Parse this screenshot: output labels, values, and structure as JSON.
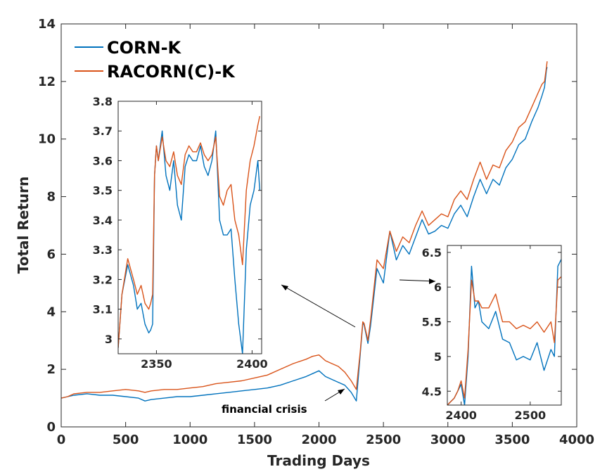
{
  "chart_data": {
    "type": "line",
    "xlabel": "Trading Days",
    "ylabel": "Total Return",
    "xlim": [
      0,
      4000
    ],
    "ylim": [
      0,
      14
    ],
    "xticks": [
      0,
      500,
      1000,
      1500,
      2000,
      2500,
      3000,
      3500,
      4000
    ],
    "yticks": [
      0,
      2,
      4,
      6,
      8,
      10,
      12,
      14
    ],
    "legend_position": "top-left",
    "colors": {
      "corn": "#0072BD",
      "racorn": "#D95319"
    },
    "series": [
      {
        "name": "CORN-K",
        "x": [
          0,
          50,
          100,
          200,
          300,
          400,
          500,
          600,
          650,
          700,
          800,
          900,
          1000,
          1100,
          1200,
          1300,
          1400,
          1500,
          1600,
          1700,
          1800,
          1900,
          1950,
          2000,
          2050,
          2100,
          2150,
          2200,
          2250,
          2290,
          2320,
          2340,
          2350,
          2380,
          2400,
          2450,
          2500,
          2550,
          2600,
          2650,
          2700,
          2750,
          2800,
          2850,
          2900,
          2950,
          3000,
          3050,
          3100,
          3150,
          3200,
          3250,
          3300,
          3350,
          3400,
          3450,
          3500,
          3550,
          3600,
          3650,
          3700,
          3730,
          3750,
          3765,
          3770
        ],
        "y": [
          1.0,
          1.05,
          1.1,
          1.15,
          1.1,
          1.1,
          1.05,
          1.0,
          0.9,
          0.95,
          1.0,
          1.05,
          1.05,
          1.1,
          1.15,
          1.2,
          1.25,
          1.3,
          1.35,
          1.45,
          1.6,
          1.75,
          1.85,
          1.95,
          1.75,
          1.65,
          1.55,
          1.45,
          1.2,
          0.9,
          2.5,
          3.6,
          3.55,
          2.9,
          3.5,
          5.5,
          5.0,
          6.8,
          5.8,
          6.3,
          6.0,
          6.6,
          7.2,
          6.7,
          6.8,
          7.0,
          6.9,
          7.4,
          7.7,
          7.3,
          8.0,
          8.6,
          8.1,
          8.6,
          8.4,
          9.0,
          9.3,
          9.8,
          10.0,
          10.6,
          11.1,
          11.5,
          11.8,
          12.4,
          12.5
        ]
      },
      {
        "name": "RACORN(C)-K",
        "x": [
          0,
          50,
          100,
          200,
          300,
          400,
          500,
          600,
          650,
          700,
          800,
          900,
          1000,
          1100,
          1200,
          1300,
          1400,
          1500,
          1600,
          1700,
          1800,
          1900,
          1950,
          2000,
          2050,
          2100,
          2150,
          2200,
          2250,
          2290,
          2320,
          2340,
          2350,
          2380,
          2400,
          2450,
          2500,
          2550,
          2600,
          2650,
          2700,
          2750,
          2800,
          2850,
          2900,
          2950,
          3000,
          3050,
          3100,
          3150,
          3200,
          3250,
          3300,
          3350,
          3400,
          3450,
          3500,
          3550,
          3600,
          3650,
          3700,
          3730,
          3750,
          3765,
          3770
        ],
        "y": [
          1.0,
          1.05,
          1.15,
          1.2,
          1.2,
          1.25,
          1.3,
          1.25,
          1.2,
          1.25,
          1.3,
          1.3,
          1.35,
          1.4,
          1.5,
          1.55,
          1.6,
          1.7,
          1.8,
          2.0,
          2.2,
          2.35,
          2.45,
          2.5,
          2.3,
          2.2,
          2.1,
          1.9,
          1.6,
          1.3,
          2.6,
          3.65,
          3.6,
          3.0,
          3.7,
          5.8,
          5.5,
          6.8,
          6.1,
          6.6,
          6.4,
          7.0,
          7.5,
          7.0,
          7.2,
          7.4,
          7.3,
          7.9,
          8.2,
          7.9,
          8.6,
          9.2,
          8.6,
          9.1,
          9.0,
          9.6,
          9.9,
          10.4,
          10.6,
          11.1,
          11.6,
          11.9,
          12.0,
          12.5,
          12.7
        ]
      }
    ],
    "insets": [
      {
        "xlim": [
          2330,
          2405
        ],
        "ylim": [
          2.95,
          3.8
        ],
        "xticks": [
          2350,
          2400
        ],
        "yticks": [
          3,
          3.1,
          3.2,
          3.3,
          3.4,
          3.5,
          3.6,
          3.7,
          3.8
        ],
        "series": [
          {
            "name": "CORN-K",
            "x": [
              2330,
              2332,
              2335,
              2338,
              2340,
              2342,
              2344,
              2346,
              2347,
              2348,
              2349,
              2350,
              2351,
              2353,
              2355,
              2357,
              2359,
              2361,
              2363,
              2365,
              2367,
              2369,
              2371,
              2373,
              2375,
              2377,
              2379,
              2381,
              2383,
              2385,
              2387,
              2389,
              2391,
              2393,
              2395,
              2397,
              2399,
              2401,
              2403,
              2404
            ],
            "y": [
              2.97,
              3.15,
              3.25,
              3.18,
              3.1,
              3.12,
              3.05,
              3.02,
              3.03,
              3.05,
              3.55,
              3.65,
              3.6,
              3.7,
              3.55,
              3.5,
              3.6,
              3.45,
              3.4,
              3.58,
              3.62,
              3.6,
              3.6,
              3.65,
              3.58,
              3.55,
              3.6,
              3.7,
              3.4,
              3.35,
              3.35,
              3.37,
              3.2,
              3.05,
              2.95,
              3.3,
              3.45,
              3.5,
              3.6,
              3.5
            ]
          },
          {
            "name": "RACORN(C)-K",
            "x": [
              2330,
              2332,
              2335,
              2338,
              2340,
              2342,
              2344,
              2346,
              2347,
              2348,
              2349,
              2350,
              2351,
              2353,
              2355,
              2357,
              2359,
              2361,
              2363,
              2365,
              2367,
              2369,
              2371,
              2373,
              2375,
              2377,
              2379,
              2381,
              2383,
              2385,
              2387,
              2389,
              2391,
              2393,
              2395,
              2397,
              2399,
              2401,
              2403,
              2404
            ],
            "y": [
              2.97,
              3.15,
              3.27,
              3.2,
              3.15,
              3.18,
              3.12,
              3.1,
              3.12,
              3.15,
              3.55,
              3.65,
              3.6,
              3.68,
              3.6,
              3.58,
              3.63,
              3.55,
              3.52,
              3.62,
              3.65,
              3.63,
              3.63,
              3.66,
              3.62,
              3.6,
              3.62,
              3.68,
              3.48,
              3.45,
              3.5,
              3.52,
              3.4,
              3.35,
              3.25,
              3.5,
              3.6,
              3.65,
              3.72,
              3.75
            ]
          }
        ]
      },
      {
        "xlim": [
          2380,
          2545
        ],
        "ylim": [
          4.3,
          6.6
        ],
        "xticks": [
          2400,
          2500
        ],
        "yticks": [
          4.5,
          5,
          5.5,
          6,
          6.5
        ],
        "series": [
          {
            "name": "CORN-K",
            "x": [
              2380,
              2390,
              2395,
              2400,
              2405,
              2410,
              2415,
              2420,
              2425,
              2430,
              2440,
              2450,
              2460,
              2470,
              2480,
              2490,
              2500,
              2510,
              2520,
              2530,
              2535,
              2540,
              2545
            ],
            "y": [
              4.3,
              4.4,
              4.5,
              4.6,
              4.3,
              5.0,
              6.3,
              5.7,
              5.8,
              5.5,
              5.4,
              5.65,
              5.25,
              5.2,
              4.95,
              5.0,
              4.95,
              5.2,
              4.8,
              5.1,
              5.0,
              6.3,
              6.4
            ]
          },
          {
            "name": "RACORN(C)-K",
            "x": [
              2380,
              2390,
              2395,
              2400,
              2405,
              2410,
              2415,
              2420,
              2425,
              2430,
              2440,
              2450,
              2460,
              2470,
              2480,
              2490,
              2500,
              2510,
              2520,
              2530,
              2535,
              2540,
              2545
            ],
            "y": [
              4.3,
              4.4,
              4.5,
              4.65,
              4.4,
              5.1,
              6.1,
              5.8,
              5.8,
              5.7,
              5.7,
              5.9,
              5.5,
              5.5,
              5.4,
              5.45,
              5.4,
              5.5,
              5.35,
              5.5,
              5.2,
              6.1,
              6.15
            ]
          }
        ]
      }
    ],
    "annotations": [
      {
        "text": "financial crisis"
      }
    ]
  }
}
